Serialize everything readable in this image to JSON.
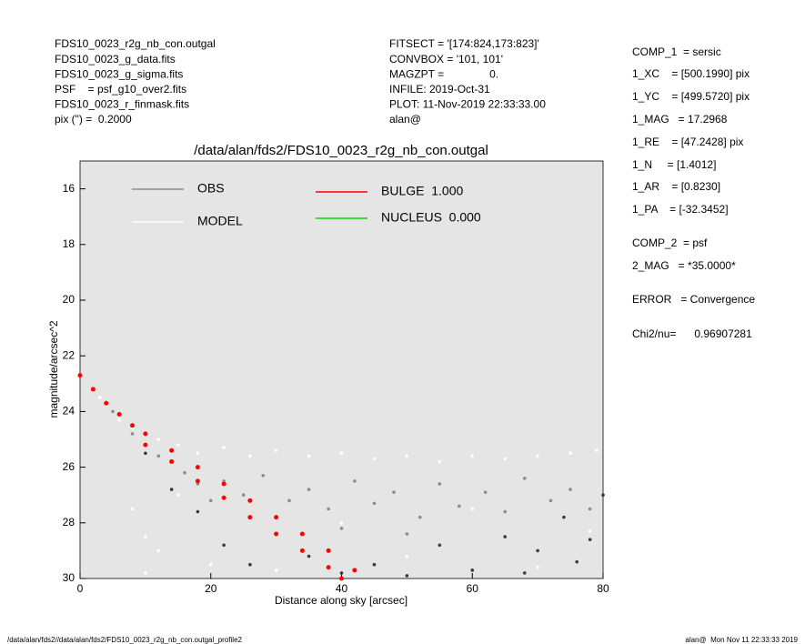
{
  "chart_data": {
    "type": "scatter",
    "title": "/data/alan/fds2/FDS10_0023_r2g_nb_con.outgal",
    "x_label": "Distance along sky [arcsec]",
    "y_label": "magnitude/arcsec^2",
    "xlim": [
      0,
      80
    ],
    "xticks": [
      0,
      20,
      40,
      60,
      80
    ],
    "ylim": [
      30,
      15
    ],
    "yticks": [
      16,
      18,
      20,
      22,
      24,
      26,
      28,
      30
    ],
    "legend": "upper left",
    "series": [
      {
        "name": "MODEL",
        "color": "#ffffff",
        "x": [
          3,
          6,
          8,
          10,
          12,
          15,
          18,
          22,
          26,
          30,
          35,
          40,
          45,
          50,
          55,
          60,
          65,
          70,
          75,
          79,
          8,
          10,
          10,
          12,
          20,
          30,
          50,
          70,
          78,
          15,
          40,
          60
        ],
        "values": [
          23.5,
          24.3,
          24.6,
          24.8,
          25.0,
          25.2,
          25.5,
          25.3,
          25.6,
          25.4,
          25.6,
          25.5,
          25.7,
          25.6,
          25.8,
          25.6,
          25.7,
          25.6,
          25.5,
          25.4,
          27.5,
          28.5,
          29.8,
          29,
          29.5,
          29.7,
          29.2,
          29.6,
          28.3,
          27.0,
          28.0,
          27.5
        ]
      },
      {
        "color": "#3a3a3a",
        "x": [
          10,
          14,
          18,
          22,
          26,
          35,
          45,
          55,
          60,
          65,
          70,
          74,
          78,
          80,
          68,
          50,
          40,
          76
        ],
        "values": [
          25.5,
          26.8,
          27.6,
          28.8,
          29.5,
          29.2,
          29.5,
          28.8,
          29.7,
          28.5,
          29.0,
          27.8,
          28.6,
          27.0,
          29.8,
          29.9,
          29.8,
          29.4
        ]
      },
      {
        "name": "OBS",
        "color": "#8c8c8c",
        "x": [
          2,
          5,
          8,
          12,
          16,
          18,
          22,
          25,
          28,
          32,
          35,
          38,
          42,
          45,
          48,
          52,
          55,
          58,
          62,
          65,
          68,
          72,
          75,
          78,
          30,
          40,
          50,
          20
        ],
        "values": [
          23.2,
          24.0,
          24.8,
          25.6,
          26.2,
          26.6,
          26.5,
          27.0,
          26.3,
          27.2,
          26.8,
          27.5,
          26.5,
          27.3,
          26.9,
          27.8,
          26.6,
          27.4,
          26.9,
          27.6,
          26.4,
          27.2,
          26.8,
          27.5,
          27.8,
          28.2,
          28.4,
          27.2
        ]
      },
      {
        "name": "BULGE  1.000",
        "color": "#ff0000",
        "x": [
          0,
          2,
          4,
          6,
          8,
          10,
          10,
          14,
          14,
          18,
          18,
          22,
          22,
          26,
          26,
          30,
          30,
          34,
          34,
          38,
          38,
          42,
          40
        ],
        "values": [
          22.7,
          23.2,
          23.7,
          24.1,
          24.5,
          24.8,
          25.2,
          25.4,
          25.8,
          26.0,
          26.5,
          26.6,
          27.1,
          27.2,
          27.8,
          27.8,
          28.4,
          28.4,
          29.0,
          29.0,
          29.6,
          29.7,
          30.0
        ]
      },
      {
        "name": "NUCLEUS  0.000",
        "color": "#00dd00",
        "x": [],
        "values": []
      }
    ],
    "header_left": [
      "FDS10_0023_r2g_nb_con.outgal",
      "FDS10_0023_g_data.fits",
      "FDS10_0023_g_sigma.fits",
      "PSF    = psf_g10_over2.fits",
      "FDS10_0023_r_finmask.fits",
      "pix (\") =  0.2000"
    ],
    "header_middle": [
      "FITSECT = '[174:824,173:823]'",
      "CONVBOX = '101, 101'",
      "MAGZPT =               0.",
      "INFILE: 2019-Oct-31",
      "PLOT: 11-Nov-2019 22:33:33.00",
      "alan@"
    ],
    "header_right": [
      "COMP_1  = sersic",
      "1_XC    = [500.1990] pix",
      "1_YC    = [499.5720] pix",
      "1_MAG   = 17.2968",
      "1_RE    = [47.2428] pix",
      "1_N     = [1.4012]",
      "1_AR    = [0.8230]",
      "1_PA    = [-32.3452]",
      "COMP_2  = psf",
      "2_MAG   = *35.0000*",
      "ERROR   = Convergence",
      "Chi2/nu=      0.96907281"
    ],
    "footer_left": "/data/alan/fds2//data/alan/fds2/FDS10_0023_r2g_nb_con.outgal_profile2",
    "footer_right": "alan@  Mon Nov 11 22:33:33 2019"
  }
}
